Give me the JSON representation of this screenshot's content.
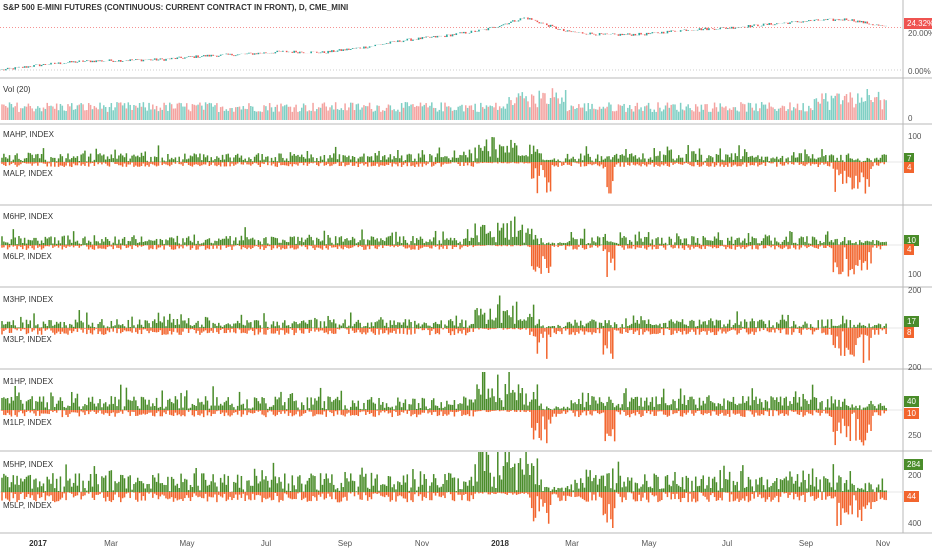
{
  "chart_data": [
    {
      "type": "line",
      "title": "S&P 500 E-MINI FUTURES (CONTINUOUS: CURRENT CONTRACT IN FRONT), D, CME_MINI",
      "y_ticks": [
        "20.00%",
        "0.00%"
      ],
      "last_value": "24.32%",
      "colors": {
        "up": "#26a69a",
        "down": "#ef5350",
        "last": "#ef5350"
      },
      "months": [
        {
          "x": "Jan 2017",
          "y": 0
        },
        {
          "x": "Feb 2017",
          "y": 3
        },
        {
          "x": "Mar 2017",
          "y": 5
        },
        {
          "x": "Apr 2017",
          "y": 5.5
        },
        {
          "x": "May 2017",
          "y": 6
        },
        {
          "x": "Jun 2017",
          "y": 8
        },
        {
          "x": "Jul 2017",
          "y": 9
        },
        {
          "x": "Aug 2017",
          "y": 10.5
        },
        {
          "x": "Sep 2017",
          "y": 10
        },
        {
          "x": "Oct 2017",
          "y": 13
        },
        {
          "x": "Nov 2017",
          "y": 17
        },
        {
          "x": "Dec 2017",
          "y": 19.5
        },
        {
          "x": "Jan 2018",
          "y": 23
        },
        {
          "x": "Feb 2018",
          "y": 30
        },
        {
          "x": "Mar 2018",
          "y": 22
        },
        {
          "x": "Apr 2018",
          "y": 20
        },
        {
          "x": "May 2018",
          "y": 20.5
        },
        {
          "x": "Jun 2018",
          "y": 23
        },
        {
          "x": "Jul 2018",
          "y": 24
        },
        {
          "x": "Aug 2018",
          "y": 26
        },
        {
          "x": "Sep 2018",
          "y": 28
        },
        {
          "x": "Oct 2018",
          "y": 29
        },
        {
          "x": "Nov 2018",
          "y": 24.3
        }
      ]
    },
    {
      "type": "bar",
      "title": "Vol (20)",
      "y_ticks": [
        "0"
      ],
      "colors": {
        "up": "#7fcfc4",
        "down": "#f4a3a0"
      }
    },
    {
      "type": "bar",
      "title": "MAHP, INDEX",
      "y_ticks": [
        "100"
      ],
      "last_value": "7",
      "color": "#4a8c2a"
    },
    {
      "type": "bar",
      "title": "MALP, INDEX",
      "y_ticks": [],
      "last_value": "4",
      "color": "#f2652e"
    },
    {
      "type": "bar",
      "title": "M6HP, INDEX",
      "y_ticks": [],
      "last_value": "10",
      "color": "#4a8c2a"
    },
    {
      "type": "bar",
      "title": "M6LP, INDEX",
      "y_ticks": [
        "100"
      ],
      "last_value": "4",
      "color": "#f2652e"
    },
    {
      "type": "bar",
      "title": "M3HP, INDEX",
      "y_ticks": [
        "200"
      ],
      "last_value": "17",
      "color": "#4a8c2a"
    },
    {
      "type": "bar",
      "title": "M3LP, INDEX",
      "y_ticks": [],
      "last_value": "8",
      "color": "#f2652e"
    },
    {
      "type": "bar",
      "title": "M1HP, INDEX",
      "y_ticks": [
        "200"
      ],
      "last_value": "40",
      "color": "#4a8c2a"
    },
    {
      "type": "bar",
      "title": "M1LP, INDEX",
      "y_ticks": [
        "250"
      ],
      "last_value": "10",
      "color": "#f2652e"
    },
    {
      "type": "bar",
      "title": "M5HP, INDEX",
      "y_ticks": [
        "200"
      ],
      "last_value": "284",
      "color": "#4a8c2a"
    },
    {
      "type": "bar",
      "title": "M5LP, INDEX",
      "y_ticks": [
        "400"
      ],
      "last_value": "44",
      "color": "#f2652e"
    }
  ],
  "x_axis": {
    "labels": [
      {
        "text": "2017",
        "bold": true
      },
      {
        "text": "Mar",
        "bold": false
      },
      {
        "text": "May",
        "bold": false
      },
      {
        "text": "Jul",
        "bold": false
      },
      {
        "text": "Sep",
        "bold": false
      },
      {
        "text": "Nov",
        "bold": false
      },
      {
        "text": "2018",
        "bold": true
      },
      {
        "text": "Mar",
        "bold": false
      },
      {
        "text": "May",
        "bold": false
      },
      {
        "text": "Jul",
        "bold": false
      },
      {
        "text": "Sep",
        "bold": false
      },
      {
        "text": "Nov",
        "bold": false
      }
    ]
  }
}
